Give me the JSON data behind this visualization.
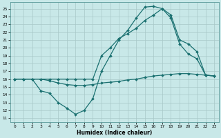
{
  "xlabel": "Humidex (Indice chaleur)",
  "bg_color": "#c8e8e8",
  "grid_color": "#a8c8c8",
  "line_color": "#1a7070",
  "xlim": [
    -0.5,
    23.5
  ],
  "ylim": [
    10.5,
    25.8
  ],
  "xticks": [
    0,
    1,
    2,
    3,
    4,
    5,
    6,
    7,
    8,
    9,
    10,
    11,
    12,
    13,
    14,
    15,
    16,
    17,
    18,
    19,
    20,
    21,
    22,
    23
  ],
  "yticks": [
    11,
    12,
    13,
    14,
    15,
    16,
    17,
    18,
    19,
    20,
    21,
    22,
    23,
    24,
    25
  ],
  "curve1_x": [
    0,
    1,
    2,
    3,
    4,
    5,
    6,
    7,
    8,
    9,
    10,
    11,
    12,
    13,
    14,
    15,
    16,
    17,
    18,
    19,
    20,
    21,
    22,
    23
  ],
  "curve1_y": [
    16,
    16,
    16,
    14.5,
    14.2,
    13.0,
    12.3,
    11.5,
    12.0,
    13.5,
    17.0,
    19.0,
    21.0,
    22.2,
    23.8,
    25.2,
    25.3,
    25.0,
    23.8,
    20.5,
    19.2,
    18.6,
    16.5,
    16.4
  ],
  "curve2_x": [
    0,
    1,
    2,
    3,
    4,
    5,
    6,
    7,
    8,
    9,
    10,
    11,
    12,
    13,
    14,
    15,
    16,
    17,
    18,
    19,
    20,
    21,
    22,
    23
  ],
  "curve2_y": [
    16,
    16,
    16,
    16,
    16,
    16,
    16,
    16,
    16,
    16,
    19.0,
    20.0,
    21.2,
    21.8,
    22.5,
    23.5,
    24.2,
    25.0,
    24.2,
    21.0,
    20.5,
    19.5,
    16.5,
    16.4
  ],
  "curve3_x": [
    0,
    1,
    2,
    3,
    4,
    5,
    6,
    7,
    8,
    9,
    10,
    11,
    12,
    13,
    14,
    15,
    16,
    17,
    18,
    19,
    20,
    21,
    22,
    23
  ],
  "curve3_y": [
    16,
    16,
    16,
    16,
    15.8,
    15.5,
    15.3,
    15.2,
    15.2,
    15.3,
    15.5,
    15.6,
    15.7,
    15.9,
    16.0,
    16.2,
    16.4,
    16.5,
    16.6,
    16.7,
    16.7,
    16.6,
    16.5,
    16.4
  ]
}
